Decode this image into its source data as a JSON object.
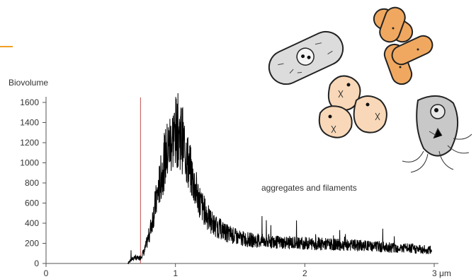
{
  "chart_data": {
    "type": "line",
    "title": "",
    "ylabel": "Biovolume",
    "xlabel": "",
    "x_unit": "μm",
    "xlim": [
      0,
      3
    ],
    "ylim": [
      0,
      1600
    ],
    "x_ticks": [
      0,
      1,
      2,
      3
    ],
    "x_tick_labels": [
      "0",
      "1",
      "2",
      "3 μm"
    ],
    "y_ticks": [
      0,
      200,
      400,
      600,
      800,
      1000,
      1200,
      1400,
      1600
    ],
    "y_tick_labels": [
      "0",
      "200",
      "400",
      "600",
      "800",
      "1000",
      "1200",
      "1400",
      "1600"
    ],
    "grid": false,
    "threshold_line_x": 0.73,
    "annotation": "aggregates and filaments",
    "series": [
      {
        "x": [
          0.63,
          0.68,
          0.72,
          0.76,
          0.8,
          0.84,
          0.88,
          0.92,
          0.96,
          1.0,
          1.02,
          1.05,
          1.08,
          1.12,
          1.16,
          1.2,
          1.25,
          1.3,
          1.4,
          1.5,
          1.6,
          1.8,
          2.0,
          2.2,
          2.4,
          2.6,
          2.8,
          2.98
        ],
        "y": [
          0,
          60,
          50,
          120,
          300,
          550,
          800,
          1050,
          1200,
          1300,
          1320,
          1250,
          1100,
          900,
          720,
          580,
          460,
          380,
          300,
          250,
          230,
          210,
          200,
          190,
          180,
          165,
          150,
          130
        ]
      }
    ],
    "colors": {
      "line": "#000000",
      "threshold": "#c0504d",
      "axis": "#555555",
      "accent": "#f0a020"
    }
  },
  "illustration": {
    "icons": [
      "rod-bacterium-icon",
      "branched-filament-icon",
      "cell-cluster-icon",
      "flagellated-cell-icon"
    ]
  }
}
